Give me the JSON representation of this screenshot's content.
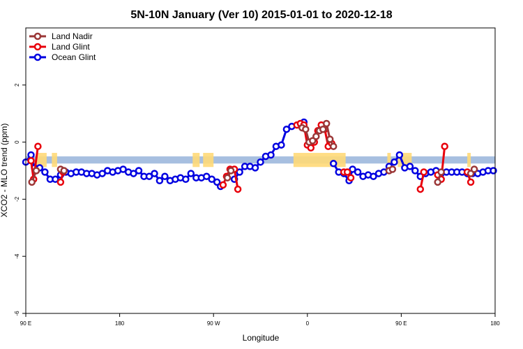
{
  "chart_data": {
    "type": "line",
    "title": "5N-10N January (Ver 10)   2015-01-01 to 2020-12-18",
    "xlabel": "Longitude",
    "ylabel": "XCO2 - MLO trend (ppm)",
    "xlim": [
      -90,
      180
    ],
    "ylim": [
      -6,
      4
    ],
    "x_ticks": [
      {
        "value": -90,
        "label": "90 E"
      },
      {
        "value": -36,
        "label": "180"
      },
      {
        "value": 18,
        "label": "90 W"
      },
      {
        "value": 72,
        "label": "0"
      },
      {
        "value": 126,
        "label": "90 E"
      },
      {
        "value": 180,
        "label": "180"
      }
    ],
    "y_ticks": [
      {
        "value": -6,
        "label": "-6"
      },
      {
        "value": -4,
        "label": "-4"
      },
      {
        "value": -2,
        "label": "-2"
      },
      {
        "value": 0,
        "label": "0"
      },
      {
        "value": 2,
        "label": "2"
      }
    ],
    "grid": false,
    "legend_position": "top-left",
    "band": {
      "ymin": -0.75,
      "ymax": -0.5,
      "color": "#a7bfe0",
      "land_color": "#ffd978"
    },
    "land_segments": [
      [
        -84,
        -78
      ],
      [
        -75,
        -72
      ],
      [
        6,
        10
      ],
      [
        12,
        18
      ],
      [
        64,
        94
      ],
      [
        118,
        120
      ],
      [
        124,
        132
      ],
      [
        164,
        166
      ]
    ],
    "series": [
      {
        "name": "Land Nadir",
        "color": "#9b3737",
        "segments": [
          [
            [
              -86.5,
              -1.4
            ],
            [
              -84,
              -1.0
            ]
          ],
          [
            [
              -70,
              -0.95
            ],
            [
              -68,
              -1.0
            ]
          ],
          [
            [
              26,
              -1.25
            ],
            [
              28,
              -1.0
            ]
          ],
          [
            [
              69,
              0.5
            ],
            [
              71,
              0.45
            ],
            [
              73,
              0
            ],
            [
              75,
              0.05
            ],
            [
              77,
              0.2
            ],
            [
              79,
              0.4
            ],
            [
              81,
              0.45
            ],
            [
              83,
              0.65
            ],
            [
              85,
              0.1
            ],
            [
              87,
              -0.15
            ]
          ],
          [
            [
              119,
              -1.0
            ],
            [
              121,
              -0.95
            ]
          ],
          [
            [
              147,
              -1.4
            ],
            [
              149,
              -1.05
            ]
          ],
          [
            [
              166,
              -1.1
            ],
            [
              168,
              -0.95
            ]
          ]
        ]
      },
      {
        "name": "Land Glint",
        "color": "#e8000b",
        "segments": [
          [
            [
              -87,
              -0.65
            ],
            [
              -85.5,
              -1.3
            ],
            [
              -83,
              -0.15
            ]
          ],
          [
            [
              -70,
              -1.4
            ],
            [
              -68.5,
              -1.05
            ]
          ],
          [
            [
              23.5,
              -1.5
            ],
            [
              25.5,
              -1.2
            ],
            [
              27.5,
              -0.95
            ],
            [
              30,
              -0.95
            ],
            [
              32,
              -1.65
            ]
          ],
          [
            [
              66,
              0.6
            ],
            [
              68,
              0.65
            ],
            [
              70,
              0.6
            ],
            [
              72,
              -0.1
            ],
            [
              74,
              -0.2
            ],
            [
              76,
              0.0
            ],
            [
              78,
              0.4
            ],
            [
              80,
              0.6
            ],
            [
              82,
              0.45
            ],
            [
              84,
              -0.15
            ],
            [
              86,
              -0.05
            ]
          ],
          [
            [
              93,
              -1.05
            ],
            [
              95,
              -1.05
            ],
            [
              97,
              -1.25
            ]
          ],
          [
            [
              137,
              -1.65
            ],
            [
              139,
              -1.05
            ]
          ],
          [
            [
              147,
              -1.15
            ],
            [
              149,
              -1.3
            ],
            [
              151,
              -0.15
            ]
          ],
          [
            [
              164,
              -1.05
            ],
            [
              166,
              -1.4
            ]
          ]
        ]
      },
      {
        "name": "Ocean Glint",
        "color": "#0000e0",
        "segments": [
          [
            [
              -90,
              -0.7
            ],
            [
              -87,
              -0.45
            ],
            [
              -85,
              -0.9
            ],
            [
              -82,
              -0.9
            ],
            [
              -79,
              -1.05
            ],
            [
              -76,
              -1.3
            ],
            [
              -73,
              -1.3
            ],
            [
              -70,
              -1.15
            ],
            [
              -67,
              -1.05
            ],
            [
              -64,
              -1.1
            ],
            [
              -61,
              -1.05
            ],
            [
              -58,
              -1.05
            ],
            [
              -55,
              -1.1
            ],
            [
              -52,
              -1.1
            ],
            [
              -49,
              -1.15
            ],
            [
              -46,
              -1.1
            ],
            [
              -43,
              -1.0
            ],
            [
              -40,
              -1.05
            ],
            [
              -37,
              -1.0
            ],
            [
              -34,
              -0.95
            ],
            [
              -31,
              -1.05
            ],
            [
              -28,
              -1.1
            ],
            [
              -25,
              -1.0
            ],
            [
              -22,
              -1.2
            ],
            [
              -19,
              -1.2
            ],
            [
              -16,
              -1.1
            ],
            [
              -13,
              -1.35
            ],
            [
              -10,
              -1.2
            ],
            [
              -7,
              -1.35
            ],
            [
              -4,
              -1.3
            ],
            [
              -1,
              -1.25
            ],
            [
              2,
              -1.3
            ],
            [
              5,
              -1.1
            ],
            [
              8,
              -1.25
            ],
            [
              11,
              -1.25
            ],
            [
              14,
              -1.2
            ],
            [
              17,
              -1.3
            ],
            [
              20,
              -1.4
            ],
            [
              22,
              -1.55
            ]
          ],
          [
            [
              30,
              -1.3
            ],
            [
              33,
              -1.05
            ],
            [
              36,
              -0.85
            ],
            [
              39,
              -0.85
            ],
            [
              42,
              -0.9
            ],
            [
              45,
              -0.7
            ],
            [
              48,
              -0.5
            ],
            [
              51,
              -0.45
            ],
            [
              54,
              -0.15
            ],
            [
              57,
              -0.1
            ],
            [
              60,
              0.45
            ],
            [
              63,
              0.55
            ],
            [
              70,
              0.7
            ]
          ],
          [
            [
              87,
              -0.75
            ],
            [
              90,
              -1.05
            ],
            [
              93,
              -1.1
            ],
            [
              96,
              -1.35
            ],
            [
              98,
              -0.95
            ],
            [
              101,
              -1.05
            ],
            [
              104,
              -1.2
            ],
            [
              107,
              -1.15
            ],
            [
              110,
              -1.2
            ],
            [
              113,
              -1.1
            ],
            [
              116,
              -1.05
            ],
            [
              119,
              -0.85
            ],
            [
              122,
              -0.7
            ],
            [
              125,
              -0.45
            ],
            [
              128,
              -0.9
            ],
            [
              131,
              -0.85
            ],
            [
              134,
              -1.0
            ],
            [
              137,
              -1.2
            ],
            [
              140,
              -1.1
            ],
            [
              143,
              -1.05
            ],
            [
              146,
              -1.0
            ],
            [
              149,
              -1.1
            ],
            [
              152,
              -1.05
            ],
            [
              155,
              -1.05
            ],
            [
              158,
              -1.05
            ],
            [
              161,
              -1.05
            ],
            [
              164,
              -1.1
            ],
            [
              167,
              -1.1
            ],
            [
              170,
              -1.1
            ],
            [
              173,
              -1.05
            ],
            [
              176,
              -1.0
            ],
            [
              179,
              -1.0
            ]
          ]
        ]
      }
    ]
  }
}
